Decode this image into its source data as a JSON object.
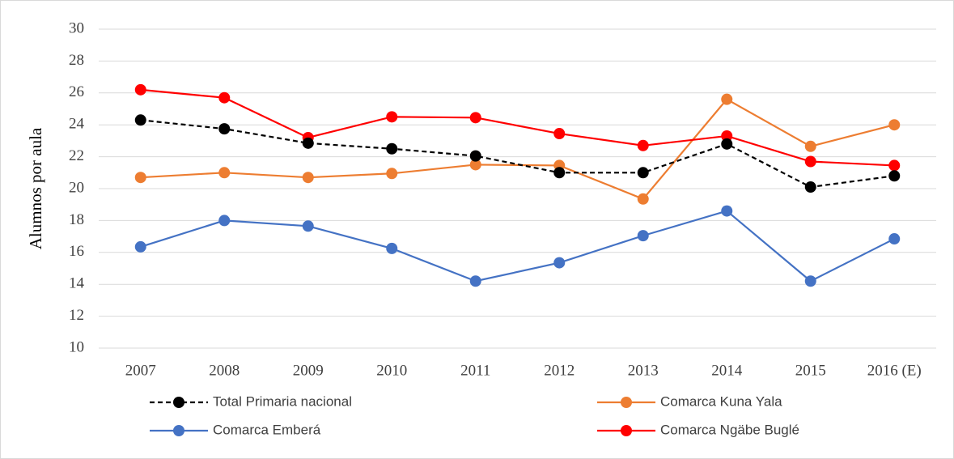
{
  "chart_data": {
    "type": "line",
    "y_label": "Alumnos por aula",
    "categories": [
      "2007",
      "2008",
      "2009",
      "2010",
      "2011",
      "2012",
      "2013",
      "2014",
      "2015",
      "2016 (E)"
    ],
    "series": [
      {
        "name": "Total Primaria nacional",
        "color": "#000000",
        "dashed": true,
        "values": [
          24.3,
          23.75,
          22.85,
          22.5,
          22.05,
          21.0,
          21.0,
          22.8,
          20.1,
          20.8
        ]
      },
      {
        "name": "Comarca Kuna Yala",
        "color": "#ed7d31",
        "dashed": false,
        "values": [
          20.7,
          21.0,
          20.7,
          20.95,
          21.5,
          21.45,
          19.35,
          25.6,
          22.65,
          24.0
        ]
      },
      {
        "name": "Comarca Emberá",
        "color": "#4472c4",
        "dashed": false,
        "values": [
          16.35,
          18.0,
          17.65,
          16.25,
          14.2,
          15.35,
          17.05,
          18.6,
          14.2,
          16.85
        ]
      },
      {
        "name": "Comarca Ngäbe Buglé",
        "color": "#ff0000",
        "dashed": false,
        "values": [
          26.2,
          25.7,
          23.2,
          24.5,
          24.45,
          23.45,
          22.7,
          23.3,
          21.7,
          21.45
        ]
      }
    ],
    "ylim": [
      10,
      30
    ],
    "yticks": [
      10,
      12,
      14,
      16,
      18,
      20,
      22,
      24,
      26,
      28,
      30
    ],
    "grid": true,
    "legend": "bottom"
  }
}
